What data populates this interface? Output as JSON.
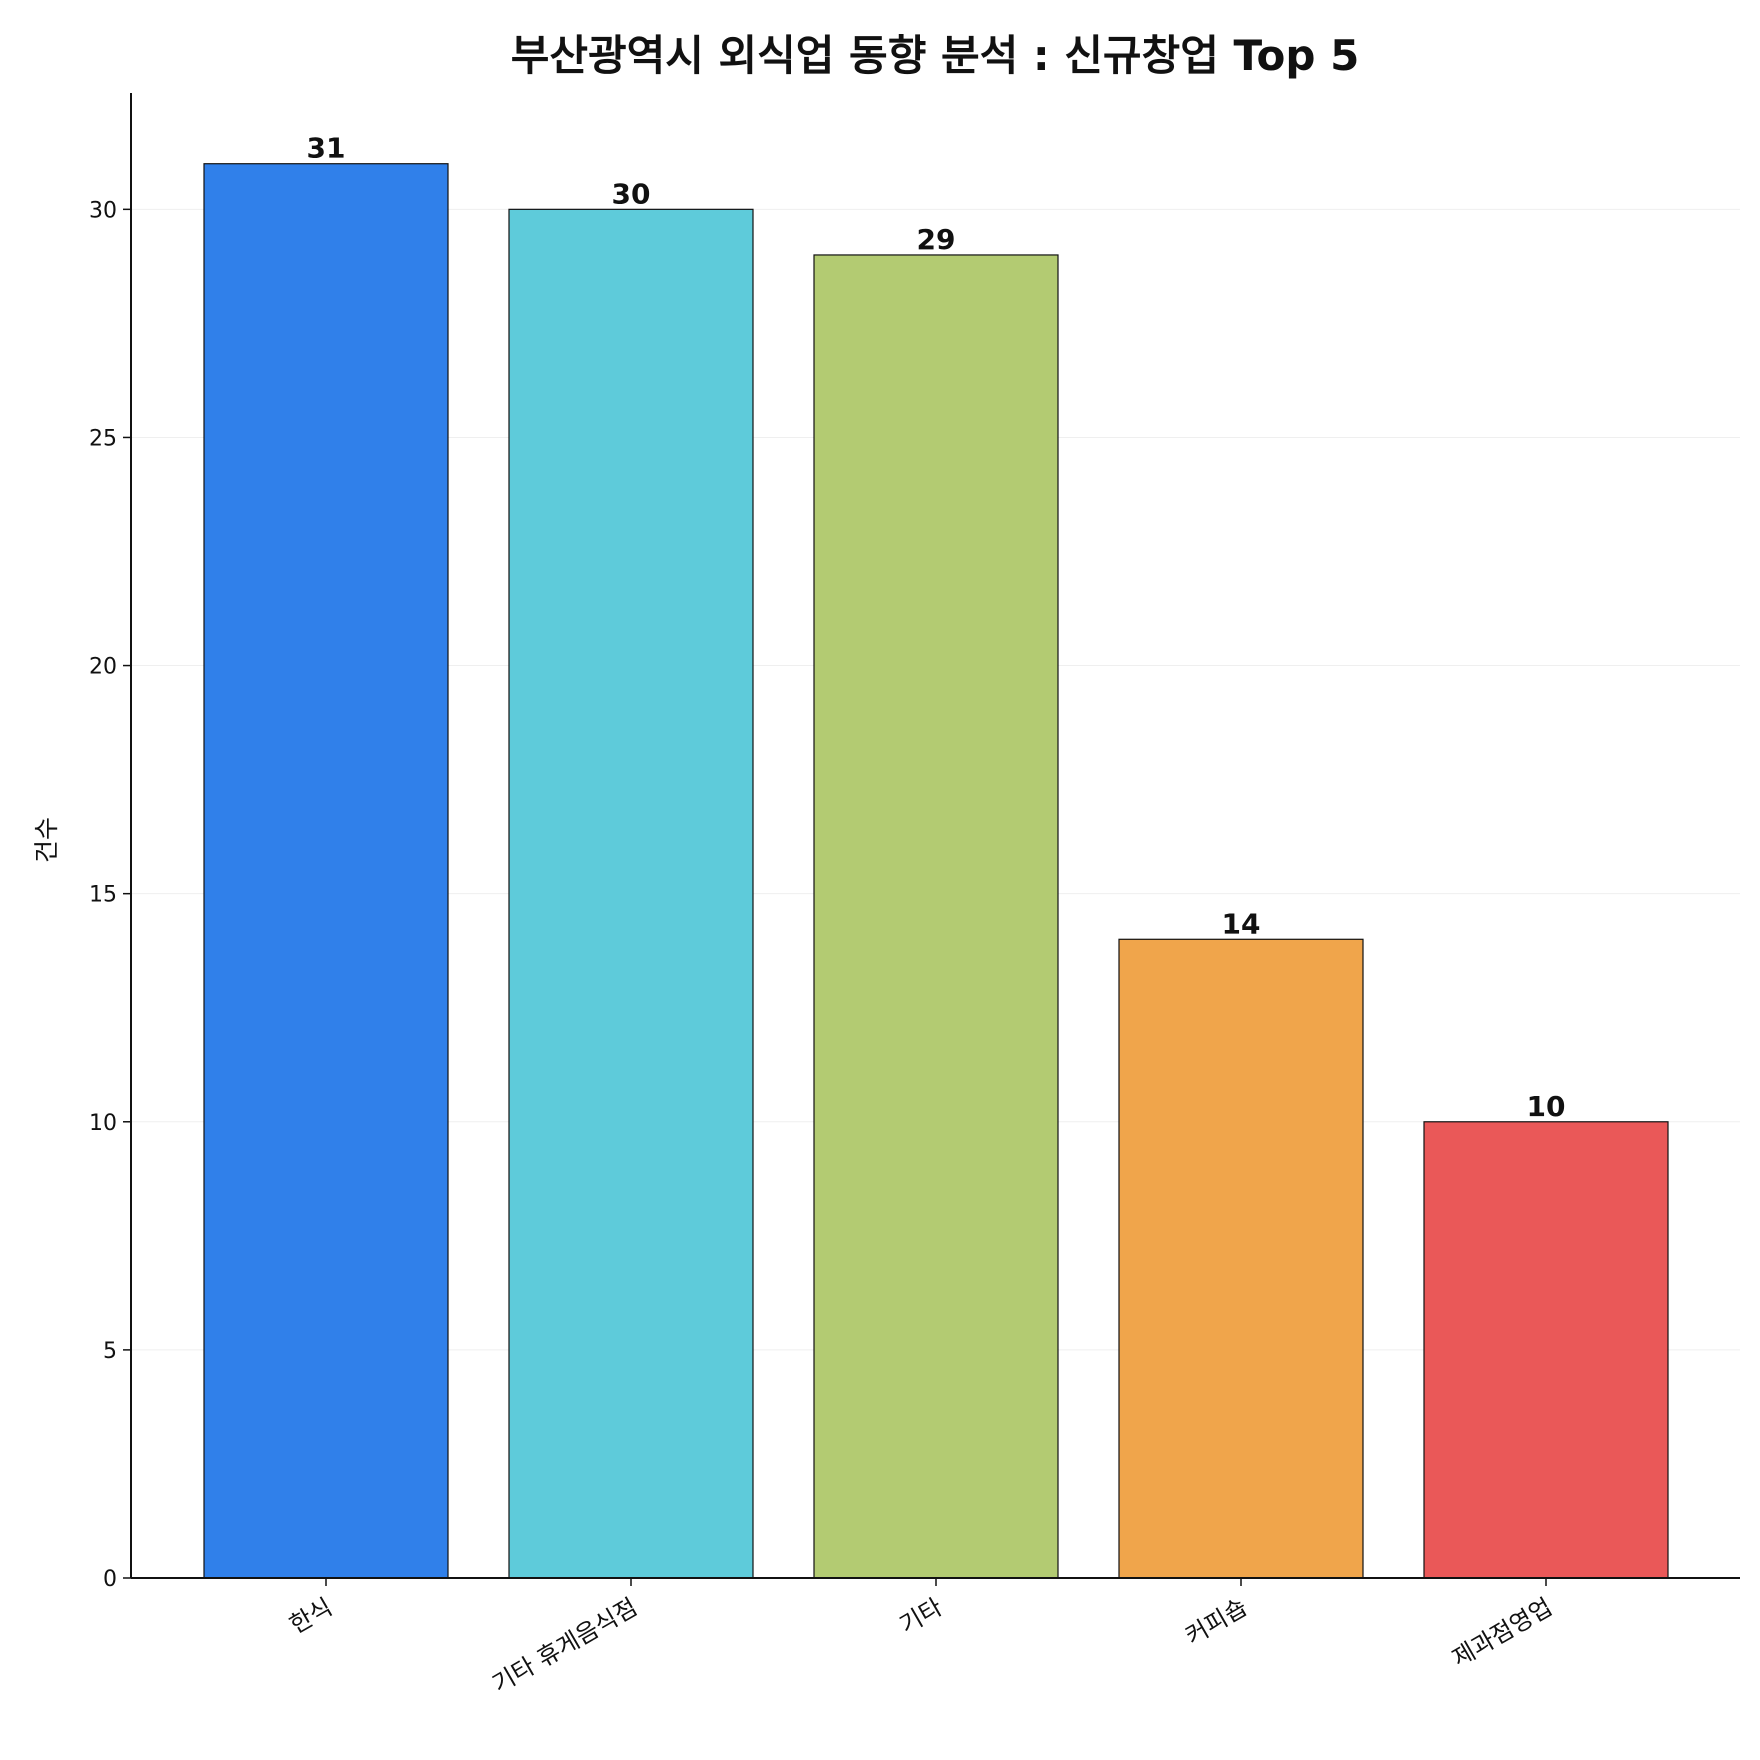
{
  "chart_data": {
    "type": "bar",
    "title": "부산광역시 외식업 동향 분석 : 신규창업 Top 5",
    "xlabel": "",
    "ylabel": "건수",
    "categories": [
      "한식",
      "기타 휴게음식점",
      "기타",
      "커피숍",
      "제과점영업"
    ],
    "values": [
      31,
      30,
      29,
      14,
      10
    ],
    "colors": [
      "#3080ea",
      "#5ecbda",
      "#b3cb72",
      "#f0a54b",
      "#ea5858"
    ],
    "ylim": [
      0,
      32.55
    ],
    "yticks": [
      0,
      5,
      10,
      15,
      20,
      25,
      30
    ],
    "grid": "horizontal",
    "show_value_labels": true
  }
}
